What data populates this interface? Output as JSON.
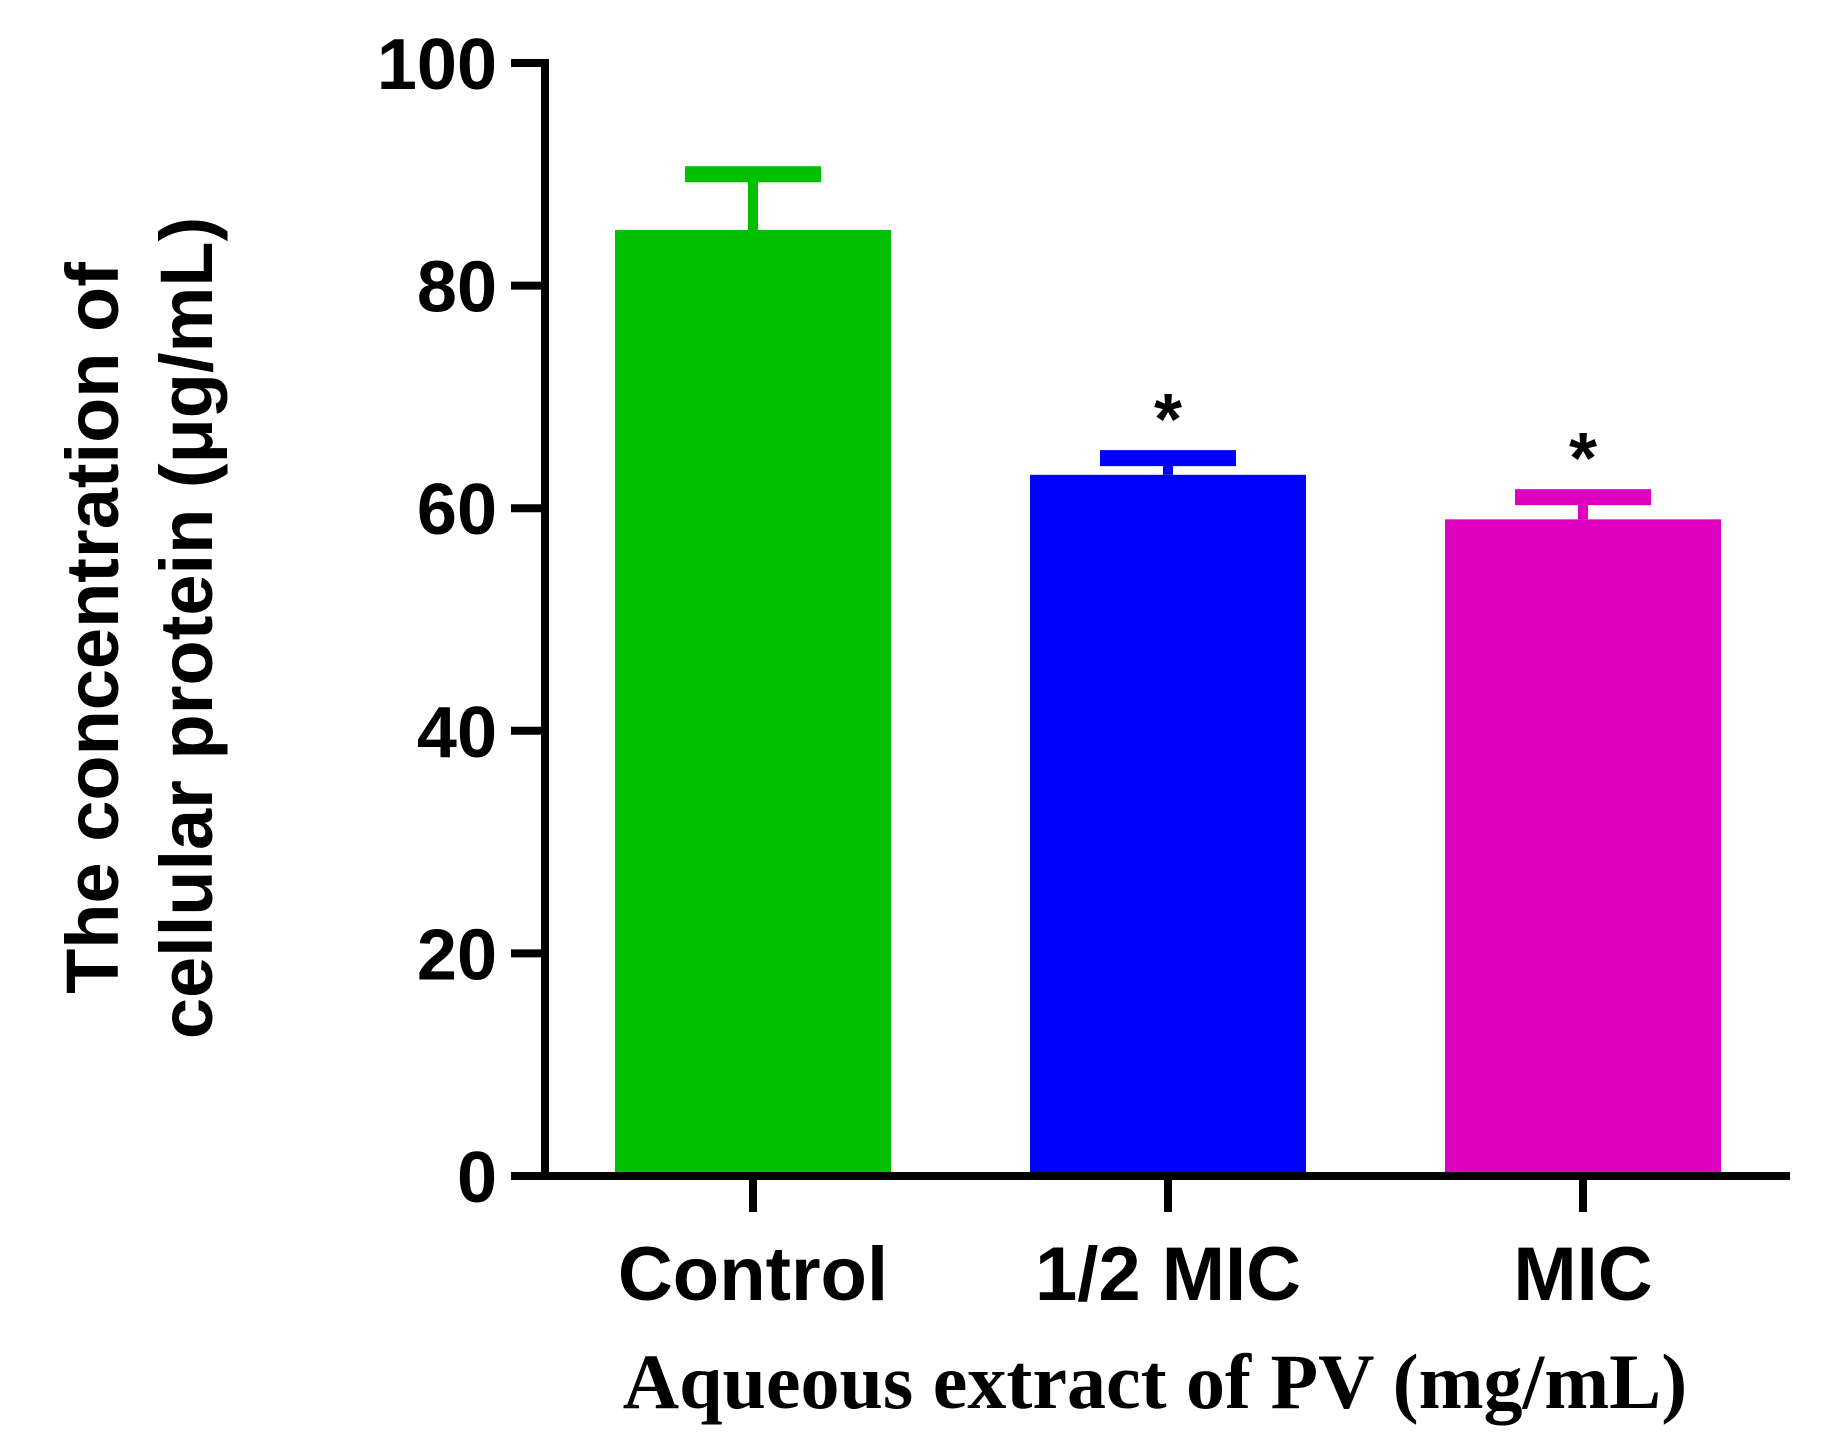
{
  "chart_data": {
    "type": "bar",
    "title": "",
    "categories": [
      "Control",
      "1/2 MIC",
      "MIC"
    ],
    "values": [
      85,
      63,
      59
    ],
    "errors": [
      5,
      1.5,
      2
    ],
    "colors": [
      "#00c000",
      "#0000ff",
      "#e000c0"
    ],
    "significance": [
      "",
      "*",
      "*"
    ],
    "ylabel_line1": "The concentration of",
    "ylabel_line2": "cellular protein (μg/mL)",
    "xlabel": "Aqueous extract of PV (mg/mL)",
    "ylim": [
      0,
      100
    ],
    "yticks": [
      0,
      20,
      40,
      60,
      80,
      100
    ],
    "ytick_labels": [
      "0",
      "20",
      "40",
      "60",
      "80",
      "100"
    ],
    "grid": false,
    "legend": "none"
  }
}
